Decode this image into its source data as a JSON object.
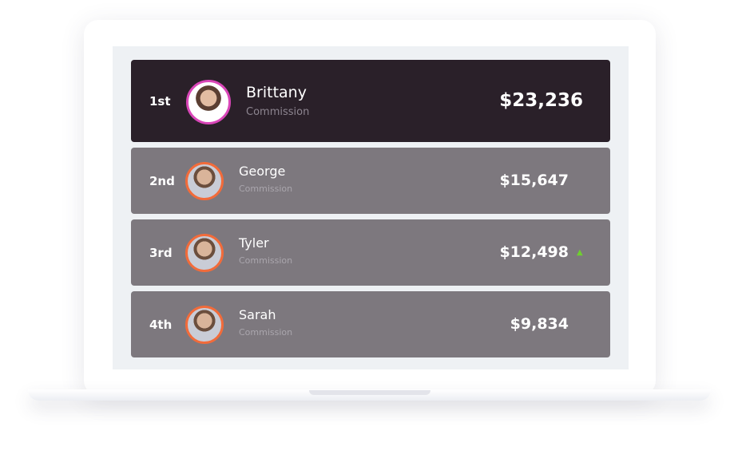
{
  "leaderboard": [
    {
      "rank": "1st",
      "name": "Brittany",
      "subtitle": "Commission",
      "amount": "$23,236",
      "trend": null
    },
    {
      "rank": "2nd",
      "name": "George",
      "subtitle": "Commission",
      "amount": "$15,647",
      "trend": null
    },
    {
      "rank": "3rd",
      "name": "Tyler",
      "subtitle": "Commission",
      "amount": "$12,498",
      "trend": "up"
    },
    {
      "rank": "4th",
      "name": "Sarah",
      "subtitle": "Commission",
      "amount": "$9,834",
      "trend": null
    }
  ],
  "colors": {
    "first_row": "#2a2029",
    "row": "#7d787e",
    "first_ring": "#d946b8",
    "ring": "#f26b3a",
    "trend_up": "#6fcf2f"
  }
}
